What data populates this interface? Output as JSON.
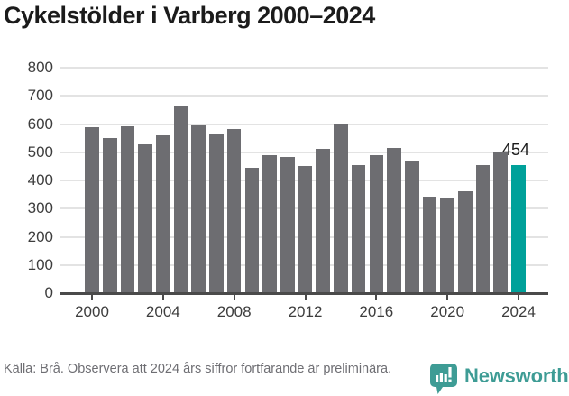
{
  "title": "Cykelstölder i Varberg 2000–2024",
  "chart_data": {
    "type": "bar",
    "title": "Cykelstölder i Varberg 2000–2024",
    "x": [
      2000,
      2001,
      2002,
      2003,
      2004,
      2005,
      2006,
      2007,
      2008,
      2009,
      2010,
      2011,
      2012,
      2013,
      2014,
      2015,
      2016,
      2017,
      2018,
      2019,
      2020,
      2021,
      2022,
      2023,
      2024
    ],
    "values": [
      588,
      551,
      593,
      529,
      559,
      666,
      595,
      567,
      581,
      444,
      489,
      482,
      450,
      512,
      603,
      453,
      491,
      516,
      467,
      342,
      339,
      361,
      455,
      502,
      454
    ],
    "highlight": {
      "index": 24,
      "label": "454",
      "color": "#00a19a"
    },
    "bar_color": "#6d6d71",
    "grid_color": "#e3e3e3",
    "axis_color": "#4a4a4a",
    "ylim": [
      0,
      800
    ],
    "ytick_step": 100,
    "yticks": [
      0,
      100,
      200,
      300,
      400,
      500,
      600,
      700,
      800
    ],
    "xticks": [
      2000,
      2004,
      2008,
      2012,
      2016,
      2020,
      2024
    ],
    "grid": true,
    "legend": false,
    "xlabel": "",
    "ylabel": ""
  },
  "footer": {
    "source": "Källa: Brå. Observera att 2024 års siffror fortfarande är preliminära.",
    "brand": {
      "name": "Newsworthy",
      "color": "#3e9c95",
      "icon": "newsworthy-speech-bubble-chart-icon"
    }
  }
}
